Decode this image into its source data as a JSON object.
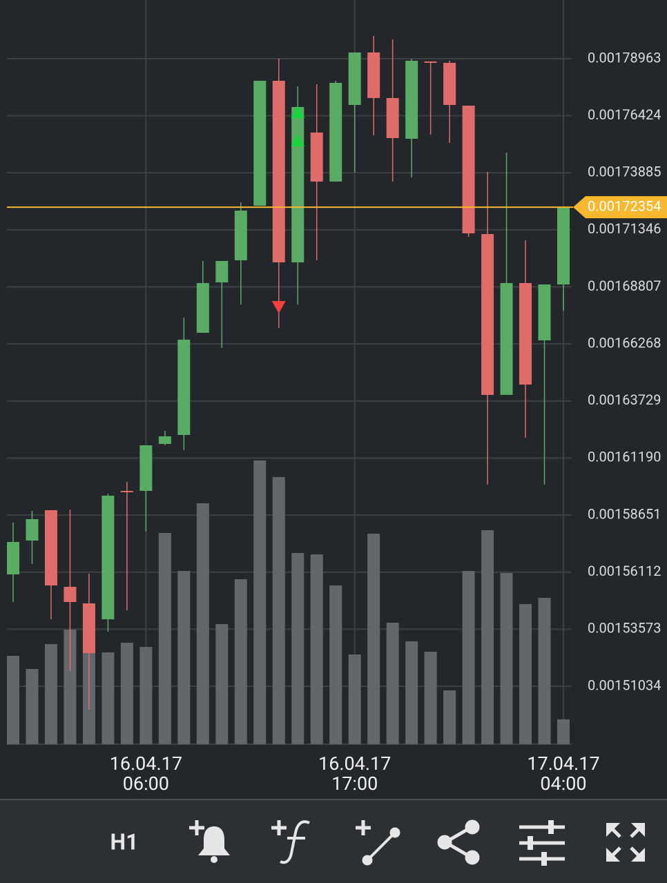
{
  "chart_data": {
    "type": "candlestick",
    "up_color": "#5aac64",
    "down_color": "#e06c6a",
    "volume_color": "#63666a",
    "open": [
      0.00156011,
      0.00157517,
      0.00158869,
      0.00155458,
      0.00154721,
      0.00154014,
      0.00159729,
      0.00159729,
      0.00161818,
      0.00162218,
      0.00166765,
      0.00169008,
      0.00169991,
      0.00172419,
      0.0017798,
      0.00169899,
      0.00175675,
      0.00173494,
      0.00176904,
      0.0017924,
      0.00177212,
      0.00175399,
      0.0017884,
      0.00178779,
      0.00176874,
      0.00171159,
      0.00164,
      0.00168977,
      0.00166427,
      0.00168916
    ],
    "high": [
      0.00158316,
      0.00158838,
      0.00158869,
      0.001589,
      0.00156042,
      0.00159606,
      0.00160129,
      0.00161757,
      0.00162402,
      0.00167441,
      0.00169961,
      0.00169961,
      0.00172572,
      0.0017798,
      0.00178963,
      0.00177734,
      0.00177826,
      0.0017798,
      0.0017924,
      0.00179977,
      0.00179823,
      0.00178963,
      0.0017884,
      0.00178871,
      0.00176874,
      0.00173924,
      0.00174784,
      0.00170882,
      0.00168916,
      0.00172354
    ],
    "low": [
      0.00154782,
      0.00156472,
      0.00154014,
      0.0015171,
      0.00149989,
      0.00153461,
      0.00154414,
      0.00157916,
      0.00161757,
      0.00161542,
      0.00166765,
      0.00166089,
      0.00168025,
      0.00172419,
      0.0016698,
      0.00168025,
      0.00169991,
      0.00173494,
      0.00173893,
      0.00175553,
      0.00173494,
      0.00173678,
      0.00175583,
      0.00175215,
      0.00171036,
      0.00160006,
      0.00164,
      0.00162095,
      0.00160006,
      0.00167748
    ],
    "close": [
      0.00157455,
      0.00158469,
      0.0015552,
      0.00154782,
      0.00152509,
      0.00159514,
      0.00159698,
      0.00161757,
      0.00162156,
      0.00166458,
      0.00168977,
      0.00169961,
      0.00172203,
      0.0017798,
      0.00169899,
      0.00176812,
      0.00173494,
      0.00177888,
      0.0017924,
      0.00177212,
      0.0017543,
      0.00178871,
      0.00178809,
      0.00176904,
      0.0017119,
      0.00164,
      0.00168977,
      0.00164461,
      0.00168916,
      0.00172354
    ],
    "volume": [
      128,
      109,
      145,
      166,
      132,
      133,
      147,
      141,
      306,
      251,
      349,
      174,
      239,
      411,
      387,
      277,
      275,
      230,
      130,
      305,
      176,
      149,
      134,
      78,
      251,
      310,
      248,
      203,
      212,
      36
    ],
    "volume_lim": [
      0,
      1078
    ],
    "ylim": [
      0.00148453,
      0.00181575
    ],
    "yticks": [
      0.00178963,
      0.00176424,
      0.00173885,
      0.00171346,
      0.00168807,
      0.00166268,
      0.00163729,
      {
        "value": 0.0016119,
        "label": "0.00161190"
      },
      0.00158651,
      0.00156112,
      0.00153573,
      0.00151034
    ],
    "xlim": [
      0,
      29
    ],
    "xticks": [
      {
        "value": 7,
        "label": [
          "16.04.17",
          "06:00"
        ]
      },
      {
        "value": 18,
        "label": [
          "16.04.17",
          "17:00"
        ]
      },
      {
        "value": 29,
        "label": [
          "17.04.17",
          "04:00"
        ]
      }
    ],
    "current_price": 0.00172354,
    "current_price_color": "#f5b82e",
    "signals": [
      {
        "index": 14,
        "kind": "sell",
        "value": 0.00167902,
        "color": "#f0413c"
      },
      {
        "index": 15,
        "kind": "buy",
        "value": 0.00176597,
        "color": "#19d23c"
      },
      {
        "index": 15,
        "kind": "buy",
        "value": 0.00175337,
        "color": "#19d23c"
      }
    ],
    "grid": true
  },
  "toolbar": {
    "timeframe": "H1"
  }
}
